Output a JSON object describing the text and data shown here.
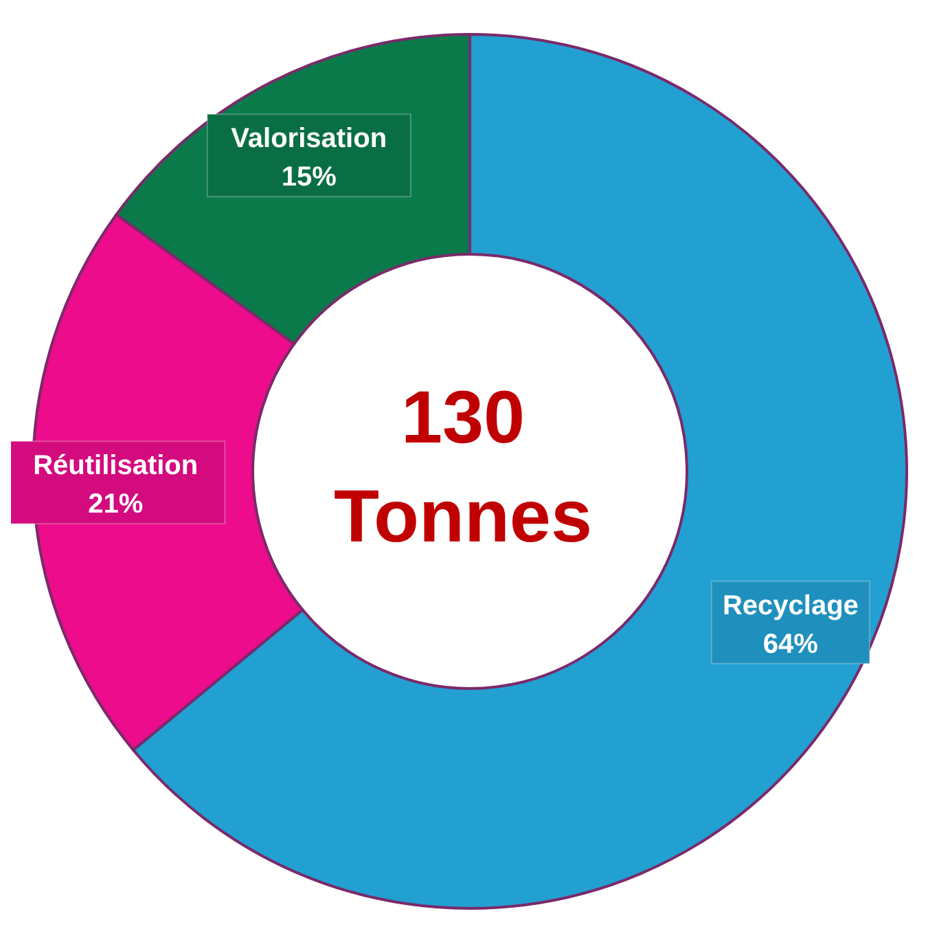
{
  "chart_data": {
    "type": "donut",
    "categories": [
      "Recyclage",
      "Réutilisation",
      "Valorisation"
    ],
    "values": [
      64,
      21,
      15
    ],
    "colors": [
      "#22a0d2",
      "#ec0c8c",
      "#0a7a4a"
    ],
    "value_labels": [
      "64%",
      "21%",
      "15%"
    ],
    "annotations": [
      "130",
      "Tonnes"
    ]
  }
}
